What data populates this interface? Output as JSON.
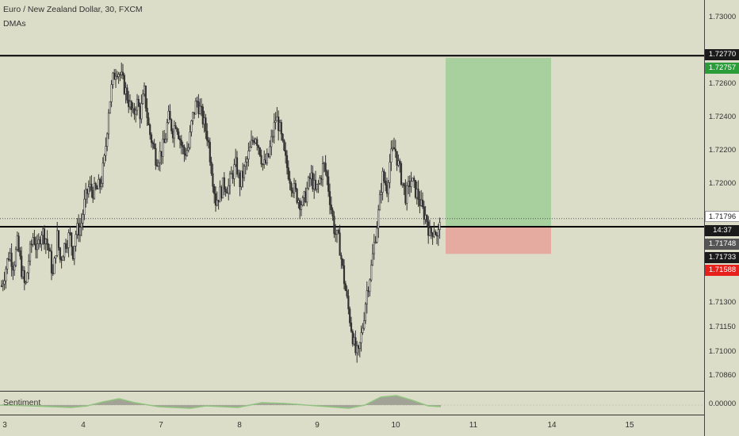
{
  "header": {
    "symbol_title": "Euro / New Zealand Dollar, 30, FXCM",
    "indicator_label": "DMAs"
  },
  "sentiment": {
    "label": "Sentiment",
    "value_label": "0.00000"
  },
  "price_axis": {
    "labels": [
      "1.73000",
      "1.72600",
      "1.72400",
      "1.72200",
      "1.72000",
      "1.71300",
      "1.71150",
      "1.71000",
      "1.70860"
    ]
  },
  "price_tags": {
    "resistance": "1.72770",
    "target": "1.72757",
    "current": "1.71796",
    "countdown": "14:37",
    "entry": "1.71748",
    "support": "1.71733",
    "stop": "1.71588"
  },
  "time_axis": {
    "labels": [
      "3",
      "4",
      "7",
      "8",
      "9",
      "10",
      "11",
      "14",
      "15"
    ]
  },
  "colors": {
    "background": "#dcddc8",
    "target_zone": "#a8cf9e",
    "stop_zone": "#e5aaa0",
    "target_tag": "#2a9d3a",
    "stop_tag": "#e8201c",
    "tag_dark": "#1a1a1a",
    "tag_grey": "#555555",
    "candle": "#333333"
  },
  "chart_data": {
    "type": "candlestick",
    "title": "Euro / New Zealand Dollar, 30, FXCM",
    "ylim": [
      1.708,
      1.731
    ],
    "x_ticks": [
      "3",
      "4",
      "7",
      "8",
      "9",
      "10",
      "11",
      "14",
      "15"
    ],
    "close_path": [
      [
        0.0,
        1.714
      ],
      [
        1.0,
        1.716
      ],
      [
        1.5,
        1.7152
      ],
      [
        2.0,
        1.7165
      ],
      [
        2.5,
        1.715
      ],
      [
        3.0,
        1.7138
      ],
      [
        3.4,
        1.7155
      ],
      [
        4.0,
        1.717
      ],
      [
        4.5,
        1.716
      ],
      [
        5.0,
        1.7173
      ],
      [
        5.6,
        1.7168
      ],
      [
        6.0,
        1.716
      ],
      [
        6.5,
        1.7145
      ],
      [
        7.0,
        1.717
      ],
      [
        7.4,
        1.7155
      ],
      [
        8.0,
        1.7165
      ],
      [
        8.6,
        1.717
      ],
      [
        9.0,
        1.716
      ],
      [
        9.4,
        1.7172
      ],
      [
        10.0,
        1.7175
      ],
      [
        10.5,
        1.719
      ],
      [
        11.0,
        1.7198
      ],
      [
        11.8,
        1.7195
      ],
      [
        12.5,
        1.72
      ],
      [
        13.0,
        1.7215
      ],
      [
        13.5,
        1.7245
      ],
      [
        14.0,
        1.7262
      ],
      [
        14.5,
        1.727
      ],
      [
        15.0,
        1.7265
      ],
      [
        15.5,
        1.7258
      ],
      [
        16.0,
        1.725
      ],
      [
        16.6,
        1.724
      ],
      [
        17.0,
        1.725
      ],
      [
        17.5,
        1.7242
      ],
      [
        18.0,
        1.7255
      ],
      [
        18.6,
        1.7232
      ],
      [
        19.0,
        1.7225
      ],
      [
        19.5,
        1.7215
      ],
      [
        20.0,
        1.7218
      ],
      [
        20.6,
        1.7225
      ],
      [
        21.0,
        1.724
      ],
      [
        21.6,
        1.7232
      ],
      [
        22.0,
        1.7238
      ],
      [
        22.6,
        1.7225
      ],
      [
        23.0,
        1.7218
      ],
      [
        23.6,
        1.7222
      ],
      [
        24.0,
        1.7238
      ],
      [
        24.6,
        1.725
      ],
      [
        25.0,
        1.7245
      ],
      [
        25.6,
        1.7235
      ],
      [
        26.0,
        1.7228
      ],
      [
        26.6,
        1.7205
      ],
      [
        27.0,
        1.719
      ],
      [
        27.6,
        1.7195
      ],
      [
        28.0,
        1.72
      ],
      [
        28.6,
        1.7198
      ],
      [
        29.0,
        1.7205
      ],
      [
        29.6,
        1.7212
      ],
      [
        30.0,
        1.72
      ],
      [
        30.6,
        1.7208
      ],
      [
        31.0,
        1.7215
      ],
      [
        31.6,
        1.7225
      ],
      [
        32.0,
        1.723
      ],
      [
        32.6,
        1.722
      ],
      [
        33.0,
        1.721
      ],
      [
        33.6,
        1.7215
      ],
      [
        34.0,
        1.7225
      ],
      [
        34.6,
        1.724
      ],
      [
        35.0,
        1.7235
      ],
      [
        35.6,
        1.7218
      ],
      [
        36.0,
        1.721
      ],
      [
        36.6,
        1.72
      ],
      [
        37.0,
        1.7195
      ],
      [
        37.6,
        1.719
      ],
      [
        38.0,
        1.7188
      ],
      [
        38.6,
        1.7198
      ],
      [
        39.0,
        1.7205
      ],
      [
        39.6,
        1.7195
      ],
      [
        40.0,
        1.72
      ],
      [
        40.6,
        1.7212
      ],
      [
        41.0,
        1.7205
      ],
      [
        41.6,
        1.7185
      ],
      [
        42.0,
        1.7172
      ],
      [
        42.6,
        1.7165
      ],
      [
        43.0,
        1.715
      ],
      [
        43.6,
        1.713
      ],
      [
        44.0,
        1.7118
      ],
      [
        44.6,
        1.71
      ],
      [
        45.0,
        1.7098
      ],
      [
        45.6,
        1.7118
      ],
      [
        46.0,
        1.7135
      ],
      [
        46.6,
        1.715
      ],
      [
        47.0,
        1.7165
      ],
      [
        47.6,
        1.7185
      ],
      [
        48.0,
        1.7205
      ],
      [
        48.6,
        1.7198
      ],
      [
        49.0,
        1.7215
      ],
      [
        49.6,
        1.7222
      ],
      [
        50.0,
        1.7212
      ],
      [
        50.6,
        1.72
      ],
      [
        51.0,
        1.7192
      ],
      [
        51.6,
        1.7203
      ],
      [
        52.0,
        1.7198
      ],
      [
        52.6,
        1.7192
      ],
      [
        53.0,
        1.7185
      ],
      [
        53.6,
        1.718
      ],
      [
        54.0,
        1.717
      ],
      [
        54.6,
        1.7175
      ],
      [
        55.0,
        1.7165
      ],
      [
        55.4,
        1.719
      ],
      [
        55.7,
        1.72
      ]
    ],
    "lines": [
      {
        "label": "1.72770",
        "value": 1.7277
      },
      {
        "label": "1.71748",
        "value": 1.71748
      },
      {
        "label": "1.71796",
        "value": 1.71796,
        "style": "dotted"
      }
    ],
    "position": {
      "entry": 1.71748,
      "target": 1.72757,
      "stop": 1.71588
    }
  }
}
